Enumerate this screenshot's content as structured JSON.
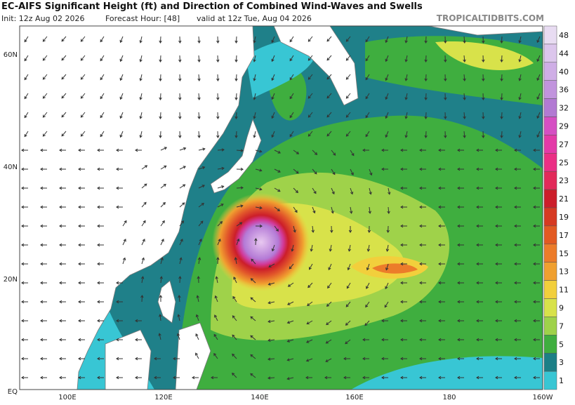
{
  "header": {
    "title": "EC-AIFS Significant Height (ft) and Direction of Combined Wind-Waves and Swells",
    "init": "Init: 12z Aug 02 2026",
    "forecast_hour": "Forecast Hour: [48]",
    "valid": "valid at 12z Tue, Aug 04 2026",
    "source": "TROPICALTIDBITS.COM"
  },
  "map": {
    "lat_labels": [
      "60N",
      "40N",
      "20N",
      "EQ"
    ],
    "lon_labels": [
      "100E",
      "120E",
      "140E",
      "160E",
      "180",
      "160W"
    ]
  },
  "colorbar": {
    "labels": [
      "48",
      "44",
      "40",
      "36",
      "32",
      "29",
      "27",
      "25",
      "23",
      "21",
      "19",
      "17",
      "15",
      "13",
      "11",
      "9",
      "7",
      "5",
      "3",
      "1"
    ],
    "colors": [
      "#e8dcf2",
      "#dcc6ec",
      "#cfaee6",
      "#c194dd",
      "#b27ad3",
      "#d54fc3",
      "#e33aa8",
      "#ea2f85",
      "#e22a5a",
      "#cc1e2a",
      "#d63a22",
      "#e25a22",
      "#ec7c2a",
      "#f0a030",
      "#f2cf3c",
      "#d8e24a",
      "#9fd24a",
      "#3fae3f",
      "#1c7f86",
      "#38c6d4"
    ]
  }
}
